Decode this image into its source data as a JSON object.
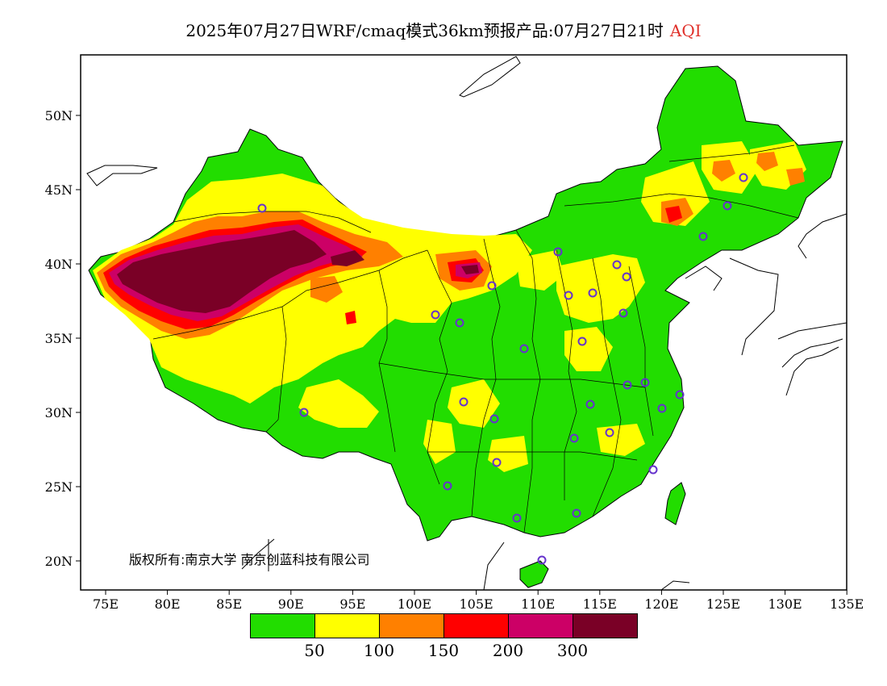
{
  "title": {
    "main": "2025年07月27日WRF/cmaq模式36km预报产品:07月27日21时",
    "variable": "AQI"
  },
  "axes": {
    "lat_labels": [
      "50N",
      "45N",
      "40N",
      "35N",
      "30N",
      "25N",
      "20N"
    ],
    "lon_labels": [
      "75E",
      "80E",
      "85E",
      "90E",
      "95E",
      "100E",
      "105E",
      "110E",
      "115E",
      "120E",
      "125E",
      "130E",
      "135E"
    ]
  },
  "copyright": "版权所有:南京大学 南京创蓝科技有限公司",
  "colorbar": {
    "colors": [
      "#22dd00",
      "#ffff00",
      "#ff8000",
      "#ff0000",
      "#cc0066",
      "#7a0026"
    ],
    "labels": [
      "50",
      "100",
      "150",
      "200",
      "300"
    ]
  },
  "station_marker_color": "#6633cc"
}
